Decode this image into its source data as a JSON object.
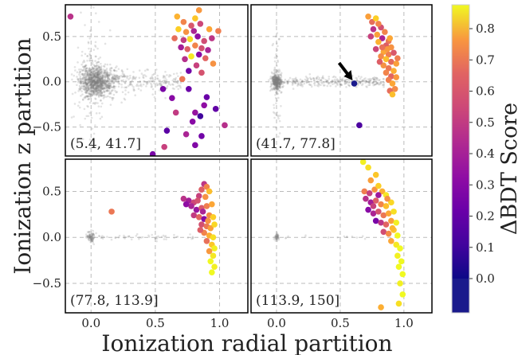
{
  "chart_data": {
    "type": "scatter",
    "xlabel": "Ionization radial partition",
    "ylabel": "Ionization z partition",
    "xlim": [
      -0.2,
      1.22
    ],
    "ylim": [
      -0.82,
      0.85
    ],
    "xticks": [
      0.0,
      0.5,
      1.0
    ],
    "xtick_labels": [
      "0.0",
      "0.5",
      "1.0"
    ],
    "yticks": [
      0.5,
      0.0,
      -0.5
    ],
    "ytick_labels": [
      "0.5",
      "0.0",
      "−0.5"
    ],
    "grid": true,
    "colorbar": {
      "label": "ΔBDT Score",
      "ticks": [
        0.0,
        0.1,
        0.2,
        0.3,
        0.4,
        0.5,
        0.6,
        0.7,
        0.8
      ],
      "tick_labels": [
        "0.0",
        "0.1",
        "0.2",
        "0.3",
        "0.4",
        "0.5",
        "0.6",
        "0.7",
        "0.8"
      ],
      "colormap": "plasma",
      "below_zero_color": "#1a1a8c"
    },
    "colors": {
      "background_points": "#808080",
      "arrow": "#000000",
      "grid": "#bbbbbb"
    },
    "panels": [
      {
        "label": "(5.4, 41.7]",
        "background_cloud": "large",
        "points": [
          {
            "x": -0.16,
            "y": 0.72,
            "c": 0.35
          },
          {
            "x": 0.84,
            "y": 0.79,
            "c": 0.68
          },
          {
            "x": 0.67,
            "y": 0.72,
            "c": 0.75
          },
          {
            "x": 0.81,
            "y": 0.7,
            "c": 0.8
          },
          {
            "x": 0.72,
            "y": 0.66,
            "c": 0.62
          },
          {
            "x": 0.78,
            "y": 0.62,
            "c": 0.48
          },
          {
            "x": 0.85,
            "y": 0.64,
            "c": 0.42
          },
          {
            "x": 0.68,
            "y": 0.58,
            "c": 0.82
          },
          {
            "x": 0.74,
            "y": 0.55,
            "c": 0.66
          },
          {
            "x": 0.8,
            "y": 0.56,
            "c": 0.3
          },
          {
            "x": 0.92,
            "y": 0.58,
            "c": 0.72
          },
          {
            "x": 0.99,
            "y": 0.56,
            "c": 0.6
          },
          {
            "x": 0.65,
            "y": 0.48,
            "c": 0.55
          },
          {
            "x": 0.72,
            "y": 0.46,
            "c": 0.38
          },
          {
            "x": 0.77,
            "y": 0.47,
            "c": 0.85
          },
          {
            "x": 0.83,
            "y": 0.5,
            "c": 0.22
          },
          {
            "x": 0.88,
            "y": 0.45,
            "c": 0.44
          },
          {
            "x": 0.94,
            "y": 0.48,
            "c": 0.36
          },
          {
            "x": 0.7,
            "y": 0.38,
            "c": 0.28
          },
          {
            "x": 0.75,
            "y": 0.36,
            "c": 0.5
          },
          {
            "x": 0.81,
            "y": 0.4,
            "c": 0.62
          },
          {
            "x": 0.86,
            "y": 0.37,
            "c": 0.45
          },
          {
            "x": 0.91,
            "y": 0.35,
            "c": 0.3
          },
          {
            "x": 0.78,
            "y": 0.28,
            "c": 0.88
          },
          {
            "x": 0.84,
            "y": 0.3,
            "c": 0.2
          },
          {
            "x": 0.89,
            "y": 0.26,
            "c": 0.52
          },
          {
            "x": 0.73,
            "y": 0.25,
            "c": 0.34
          },
          {
            "x": 0.95,
            "y": 0.2,
            "c": 0.66
          },
          {
            "x": 0.82,
            "y": 0.18,
            "c": 0.4
          },
          {
            "x": 0.76,
            "y": 0.12,
            "c": 0.14
          },
          {
            "x": 0.86,
            "y": 0.1,
            "c": 0.46
          },
          {
            "x": 0.71,
            "y": 0.03,
            "c": 0.58
          },
          {
            "x": 0.56,
            "y": -0.08,
            "c": 0.16
          },
          {
            "x": 0.76,
            "y": -0.08,
            "c": 0.12
          },
          {
            "x": 0.63,
            "y": -0.18,
            "c": 0.2
          },
          {
            "x": 0.9,
            "y": -0.17,
            "c": 0.12
          },
          {
            "x": 0.88,
            "y": -0.26,
            "c": 0.22
          },
          {
            "x": 0.66,
            "y": -0.34,
            "c": 0.38
          },
          {
            "x": 0.81,
            "y": -0.34,
            "c": 0.24
          },
          {
            "x": 0.97,
            "y": -0.3,
            "c": 0.1
          },
          {
            "x": 0.85,
            "y": -0.38,
            "c": 0.02
          },
          {
            "x": 0.79,
            "y": -0.44,
            "c": 0.2
          },
          {
            "x": 0.59,
            "y": -0.54,
            "c": 0.08
          },
          {
            "x": 0.74,
            "y": -0.58,
            "c": 0.3
          },
          {
            "x": 0.86,
            "y": -0.6,
            "c": 0.14
          },
          {
            "x": 1.04,
            "y": -0.48,
            "c": 0.34
          },
          {
            "x": 0.48,
            "y": -0.8,
            "c": 0.16
          },
          {
            "x": 0.57,
            "y": -0.72,
            "c": 0.4
          },
          {
            "x": 0.81,
            "y": -0.7,
            "c": 0.18
          }
        ]
      },
      {
        "label": "(41.7, 77.8]",
        "background_cloud": "medium",
        "arrow_target": {
          "x": 0.61,
          "y": -0.02
        },
        "points": [
          {
            "x": 0.61,
            "y": -0.02,
            "c": -0.05
          },
          {
            "x": 0.65,
            "y": -0.48,
            "c": 0.05
          },
          {
            "x": 0.72,
            "y": 0.72,
            "c": 0.7
          },
          {
            "x": 0.75,
            "y": 0.66,
            "c": 0.55
          },
          {
            "x": 0.78,
            "y": 0.7,
            "c": 0.82
          },
          {
            "x": 0.82,
            "y": 0.6,
            "c": 0.45
          },
          {
            "x": 0.76,
            "y": 0.58,
            "c": 0.35
          },
          {
            "x": 0.85,
            "y": 0.55,
            "c": 0.62
          },
          {
            "x": 0.79,
            "y": 0.52,
            "c": 0.7
          },
          {
            "x": 0.83,
            "y": 0.48,
            "c": 0.3
          },
          {
            "x": 0.88,
            "y": 0.45,
            "c": 0.58
          },
          {
            "x": 0.8,
            "y": 0.44,
            "c": 0.75
          },
          {
            "x": 0.86,
            "y": 0.4,
            "c": 0.5
          },
          {
            "x": 0.9,
            "y": 0.38,
            "c": 0.66
          },
          {
            "x": 0.78,
            "y": 0.36,
            "c": 0.42
          },
          {
            "x": 0.84,
            "y": 0.33,
            "c": 0.72
          },
          {
            "x": 0.88,
            "y": 0.3,
            "c": 0.6
          },
          {
            "x": 0.92,
            "y": 0.32,
            "c": 0.48
          },
          {
            "x": 0.82,
            "y": 0.28,
            "c": 0.64
          },
          {
            "x": 0.86,
            "y": 0.25,
            "c": 0.78
          },
          {
            "x": 0.9,
            "y": 0.22,
            "c": 0.54
          },
          {
            "x": 0.94,
            "y": 0.2,
            "c": 0.7
          },
          {
            "x": 0.84,
            "y": 0.18,
            "c": 0.66
          },
          {
            "x": 0.88,
            "y": 0.15,
            "c": 0.58
          },
          {
            "x": 0.92,
            "y": 0.12,
            "c": 0.74
          },
          {
            "x": 0.86,
            "y": 0.1,
            "c": 0.62
          },
          {
            "x": 0.9,
            "y": 0.06,
            "c": 0.52
          },
          {
            "x": 0.94,
            "y": 0.05,
            "c": 0.68
          },
          {
            "x": 0.88,
            "y": 0.02,
            "c": 0.6
          },
          {
            "x": 0.91,
            "y": -0.02,
            "c": 0.72
          },
          {
            "x": 0.93,
            "y": -0.08,
            "c": 0.64
          },
          {
            "x": 0.89,
            "y": -0.1,
            "c": 0.55
          },
          {
            "x": 0.91,
            "y": -0.14,
            "c": 0.78
          },
          {
            "x": 0.74,
            "y": 0.5,
            "c": 0.4
          },
          {
            "x": 0.8,
            "y": 0.64,
            "c": 0.62
          },
          {
            "x": 0.87,
            "y": 0.36,
            "c": 0.68
          },
          {
            "x": 0.95,
            "y": 0.26,
            "c": 0.6
          },
          {
            "x": 0.83,
            "y": 0.38,
            "c": 0.56
          },
          {
            "x": 0.89,
            "y": 0.48,
            "c": 0.72
          },
          {
            "x": 0.81,
            "y": 0.22,
            "c": 0.5
          }
        ]
      },
      {
        "label": "(77.8, 113.9]",
        "background_cloud": "small",
        "points": [
          {
            "x": 0.16,
            "y": 0.28,
            "c": 0.58
          },
          {
            "x": 0.72,
            "y": 0.42,
            "c": 0.35
          },
          {
            "x": 0.76,
            "y": 0.4,
            "c": 0.28
          },
          {
            "x": 0.8,
            "y": 0.38,
            "c": 0.42
          },
          {
            "x": 0.86,
            "y": 0.52,
            "c": 0.5
          },
          {
            "x": 0.88,
            "y": 0.58,
            "c": 0.36
          },
          {
            "x": 0.9,
            "y": 0.55,
            "c": 0.62
          },
          {
            "x": 0.92,
            "y": 0.5,
            "c": 0.78
          },
          {
            "x": 0.84,
            "y": 0.45,
            "c": 0.4
          },
          {
            "x": 0.89,
            "y": 0.44,
            "c": 0.66
          },
          {
            "x": 0.78,
            "y": 0.34,
            "c": 0.3
          },
          {
            "x": 0.82,
            "y": 0.3,
            "c": 0.25
          },
          {
            "x": 0.86,
            "y": 0.32,
            "c": 0.48
          },
          {
            "x": 0.9,
            "y": 0.34,
            "c": 0.6
          },
          {
            "x": 0.94,
            "y": 0.36,
            "c": 0.72
          },
          {
            "x": 0.8,
            "y": 0.24,
            "c": 0.38
          },
          {
            "x": 0.84,
            "y": 0.22,
            "c": 0.52
          },
          {
            "x": 0.88,
            "y": 0.2,
            "c": 0.2
          },
          {
            "x": 0.92,
            "y": 0.24,
            "c": 0.64
          },
          {
            "x": 0.95,
            "y": 0.22,
            "c": 0.82
          },
          {
            "x": 0.86,
            "y": 0.14,
            "c": 0.45
          },
          {
            "x": 0.9,
            "y": 0.12,
            "c": 0.58
          },
          {
            "x": 0.93,
            "y": 0.1,
            "c": 0.7
          },
          {
            "x": 0.96,
            "y": 0.14,
            "c": 0.84
          },
          {
            "x": 0.88,
            "y": 0.05,
            "c": 0.62
          },
          {
            "x": 0.92,
            "y": 0.02,
            "c": 0.74
          },
          {
            "x": 0.95,
            "y": 0.0,
            "c": 0.86
          },
          {
            "x": 0.9,
            "y": -0.04,
            "c": 0.56
          },
          {
            "x": 0.94,
            "y": -0.08,
            "c": 0.8
          },
          {
            "x": 0.96,
            "y": -0.12,
            "c": 0.9
          },
          {
            "x": 0.92,
            "y": -0.15,
            "c": 0.68
          },
          {
            "x": 0.95,
            "y": -0.2,
            "c": 0.88
          },
          {
            "x": 0.93,
            "y": -0.26,
            "c": 0.92
          },
          {
            "x": 0.96,
            "y": -0.32,
            "c": 0.9
          },
          {
            "x": 0.94,
            "y": -0.38,
            "c": 0.94
          },
          {
            "x": 0.74,
            "y": 0.36,
            "c": 0.22
          },
          {
            "x": 0.83,
            "y": 0.4,
            "c": 0.46
          },
          {
            "x": 0.87,
            "y": 0.28,
            "c": 0.3
          },
          {
            "x": 0.91,
            "y": 0.18,
            "c": 0.66
          },
          {
            "x": 0.85,
            "y": 0.08,
            "c": 0.5
          }
        ]
      },
      {
        "label": "(113.9, 150]",
        "background_cloud": "tiny",
        "points": [
          {
            "x": 0.68,
            "y": 0.82,
            "c": 0.9
          },
          {
            "x": 0.72,
            "y": 0.76,
            "c": 0.86
          },
          {
            "x": 0.74,
            "y": 0.62,
            "c": 0.7
          },
          {
            "x": 0.78,
            "y": 0.68,
            "c": 0.8
          },
          {
            "x": 0.69,
            "y": 0.5,
            "c": 0.6
          },
          {
            "x": 0.73,
            "y": 0.48,
            "c": 0.4
          },
          {
            "x": 0.77,
            "y": 0.52,
            "c": 0.66
          },
          {
            "x": 0.8,
            "y": 0.56,
            "c": 0.82
          },
          {
            "x": 0.83,
            "y": 0.5,
            "c": 0.74
          },
          {
            "x": 0.86,
            "y": 0.46,
            "c": 0.88
          },
          {
            "x": 0.7,
            "y": 0.42,
            "c": 0.34
          },
          {
            "x": 0.74,
            "y": 0.38,
            "c": 0.28
          },
          {
            "x": 0.78,
            "y": 0.4,
            "c": 0.5
          },
          {
            "x": 0.82,
            "y": 0.36,
            "c": 0.62
          },
          {
            "x": 0.86,
            "y": 0.34,
            "c": 0.78
          },
          {
            "x": 0.9,
            "y": 0.38,
            "c": 0.84
          },
          {
            "x": 0.72,
            "y": 0.3,
            "c": 0.2
          },
          {
            "x": 0.76,
            "y": 0.26,
            "c": 0.3
          },
          {
            "x": 0.8,
            "y": 0.28,
            "c": 0.46
          },
          {
            "x": 0.84,
            "y": 0.24,
            "c": 0.58
          },
          {
            "x": 0.88,
            "y": 0.26,
            "c": 0.72
          },
          {
            "x": 0.92,
            "y": 0.28,
            "c": 0.86
          },
          {
            "x": 0.78,
            "y": 0.18,
            "c": 0.16
          },
          {
            "x": 0.82,
            "y": 0.16,
            "c": 0.36
          },
          {
            "x": 0.86,
            "y": 0.14,
            "c": 0.52
          },
          {
            "x": 0.9,
            "y": 0.18,
            "c": 0.7
          },
          {
            "x": 0.94,
            "y": 0.16,
            "c": 0.9
          },
          {
            "x": 0.84,
            "y": 0.06,
            "c": 0.44
          },
          {
            "x": 0.88,
            "y": 0.04,
            "c": 0.64
          },
          {
            "x": 0.92,
            "y": 0.08,
            "c": 0.8
          },
          {
            "x": 0.95,
            "y": 0.02,
            "c": 0.92
          },
          {
            "x": 0.9,
            "y": -0.04,
            "c": 0.72
          },
          {
            "x": 0.94,
            "y": -0.08,
            "c": 0.88
          },
          {
            "x": 0.97,
            "y": -0.12,
            "c": 0.94
          },
          {
            "x": 0.95,
            "y": -0.2,
            "c": 0.9
          },
          {
            "x": 0.98,
            "y": -0.26,
            "c": 0.96
          },
          {
            "x": 0.96,
            "y": -0.32,
            "c": 0.92
          },
          {
            "x": 0.99,
            "y": -0.4,
            "c": 0.95
          },
          {
            "x": 0.97,
            "y": -0.5,
            "c": 0.9
          },
          {
            "x": 0.99,
            "y": -0.62,
            "c": 0.96
          },
          {
            "x": 0.82,
            "y": -0.76,
            "c": 0.74
          },
          {
            "x": 0.96,
            "y": -0.72,
            "c": 0.86
          },
          {
            "x": 0.8,
            "y": 0.46,
            "c": 0.26
          },
          {
            "x": 0.76,
            "y": 0.34,
            "c": 0.4
          },
          {
            "x": 0.87,
            "y": 0.42,
            "c": 0.66
          },
          {
            "x": 0.91,
            "y": 0.1,
            "c": 0.76
          }
        ]
      }
    ]
  }
}
